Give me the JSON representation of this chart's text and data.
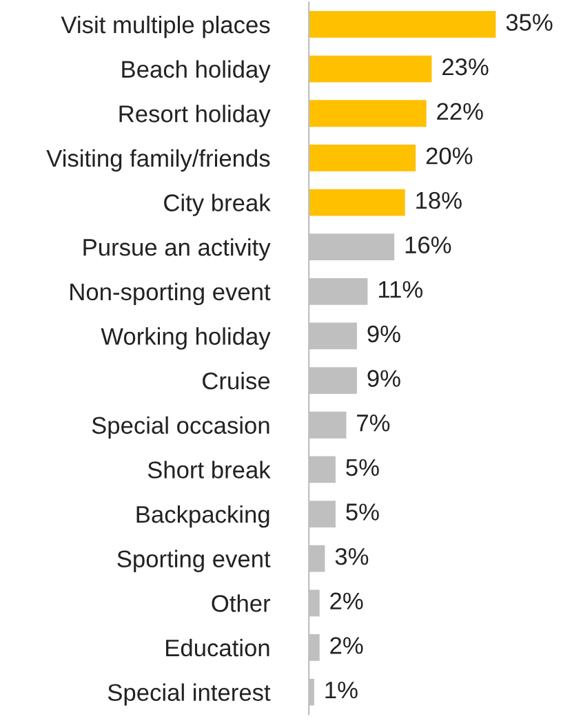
{
  "chart_data": {
    "type": "bar",
    "orientation": "horizontal",
    "categories": [
      "Visit multiple places",
      "Beach holiday",
      "Resort holiday",
      "Visiting family/friends",
      "City break",
      "Pursue an activity",
      "Non-sporting event",
      "Working holiday",
      "Cruise",
      "Special occasion",
      "Short break",
      "Backpacking",
      "Sporting event",
      "Other",
      "Education",
      "Special interest"
    ],
    "values": [
      35,
      23,
      22,
      20,
      18,
      16,
      11,
      9,
      9,
      7,
      5,
      5,
      3,
      2,
      2,
      1
    ],
    "colors": [
      "#ffc000",
      "#ffc000",
      "#ffc000",
      "#ffc000",
      "#ffc000",
      "#bfbfbf",
      "#bfbfbf",
      "#bfbfbf",
      "#bfbfbf",
      "#bfbfbf",
      "#bfbfbf",
      "#bfbfbf",
      "#bfbfbf",
      "#bfbfbf",
      "#bfbfbf",
      "#bfbfbf"
    ],
    "value_labels": [
      "35%",
      "23%",
      "22%",
      "20%",
      "18%",
      "16%",
      "11%",
      "9%",
      "9%",
      "7%",
      "5%",
      "5%",
      "3%",
      "2%",
      "2%",
      "1%"
    ],
    "grid": false,
    "legend": false
  }
}
